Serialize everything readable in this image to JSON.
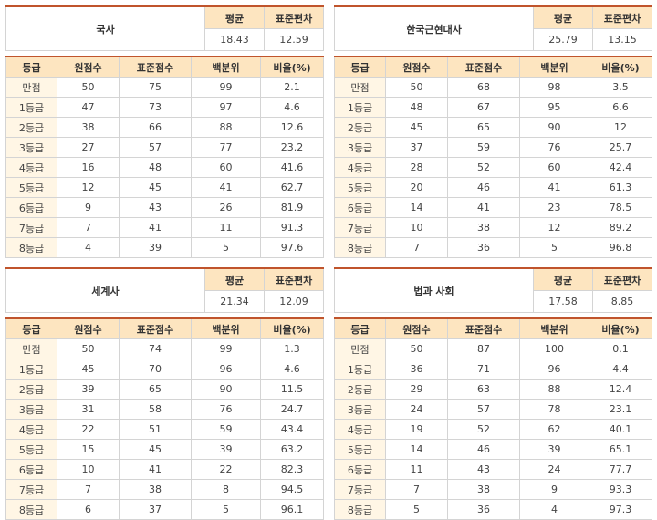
{
  "headers": {
    "mean": "평균",
    "sd": "표준편차",
    "grade": "등급",
    "raw": "원점수",
    "std": "표준점수",
    "pct": "백분위",
    "ratio": "비율(%)"
  },
  "panels": [
    {
      "name": "국사",
      "mean": "18.43",
      "sd": "12.59",
      "rows": [
        [
          "만점",
          "50",
          "75",
          "99",
          "2.1"
        ],
        [
          "1등급",
          "47",
          "73",
          "97",
          "4.6"
        ],
        [
          "2등급",
          "38",
          "66",
          "88",
          "12.6"
        ],
        [
          "3등급",
          "27",
          "57",
          "77",
          "23.2"
        ],
        [
          "4등급",
          "16",
          "48",
          "60",
          "41.6"
        ],
        [
          "5등급",
          "12",
          "45",
          "41",
          "62.7"
        ],
        [
          "6등급",
          "9",
          "43",
          "26",
          "81.9"
        ],
        [
          "7등급",
          "7",
          "41",
          "11",
          "91.3"
        ],
        [
          "8등급",
          "4",
          "39",
          "5",
          "97.6"
        ]
      ]
    },
    {
      "name": "한국근현대사",
      "mean": "25.79",
      "sd": "13.15",
      "rows": [
        [
          "만점",
          "50",
          "68",
          "98",
          "3.5"
        ],
        [
          "1등급",
          "48",
          "67",
          "95",
          "6.6"
        ],
        [
          "2등급",
          "45",
          "65",
          "90",
          "12"
        ],
        [
          "3등급",
          "37",
          "59",
          "76",
          "25.7"
        ],
        [
          "4등급",
          "28",
          "52",
          "60",
          "42.4"
        ],
        [
          "5등급",
          "20",
          "46",
          "41",
          "61.3"
        ],
        [
          "6등급",
          "14",
          "41",
          "23",
          "78.5"
        ],
        [
          "7등급",
          "10",
          "38",
          "12",
          "89.2"
        ],
        [
          "8등급",
          "7",
          "36",
          "5",
          "96.8"
        ]
      ]
    },
    {
      "name": "세계사",
      "mean": "21.34",
      "sd": "12.09",
      "rows": [
        [
          "만점",
          "50",
          "74",
          "99",
          "1.3"
        ],
        [
          "1등급",
          "45",
          "70",
          "96",
          "4.6"
        ],
        [
          "2등급",
          "39",
          "65",
          "90",
          "11.5"
        ],
        [
          "3등급",
          "31",
          "58",
          "76",
          "24.7"
        ],
        [
          "4등급",
          "22",
          "51",
          "59",
          "43.4"
        ],
        [
          "5등급",
          "15",
          "45",
          "39",
          "63.2"
        ],
        [
          "6등급",
          "10",
          "41",
          "22",
          "82.3"
        ],
        [
          "7등급",
          "7",
          "38",
          "8",
          "94.5"
        ],
        [
          "8등급",
          "6",
          "37",
          "5",
          "96.1"
        ]
      ]
    },
    {
      "name": "법과 사회",
      "mean": "17.58",
      "sd": "8.85",
      "rows": [
        [
          "만점",
          "50",
          "87",
          "100",
          "0.1"
        ],
        [
          "1등급",
          "36",
          "71",
          "96",
          "4.4"
        ],
        [
          "2등급",
          "29",
          "63",
          "88",
          "12.4"
        ],
        [
          "3등급",
          "24",
          "57",
          "78",
          "23.1"
        ],
        [
          "4등급",
          "19",
          "52",
          "62",
          "40.1"
        ],
        [
          "5등급",
          "14",
          "46",
          "39",
          "65.1"
        ],
        [
          "6등급",
          "11",
          "43",
          "24",
          "77.7"
        ],
        [
          "7등급",
          "7",
          "38",
          "9",
          "93.3"
        ],
        [
          "8등급",
          "5",
          "36",
          "4",
          "97.3"
        ]
      ]
    }
  ]
}
